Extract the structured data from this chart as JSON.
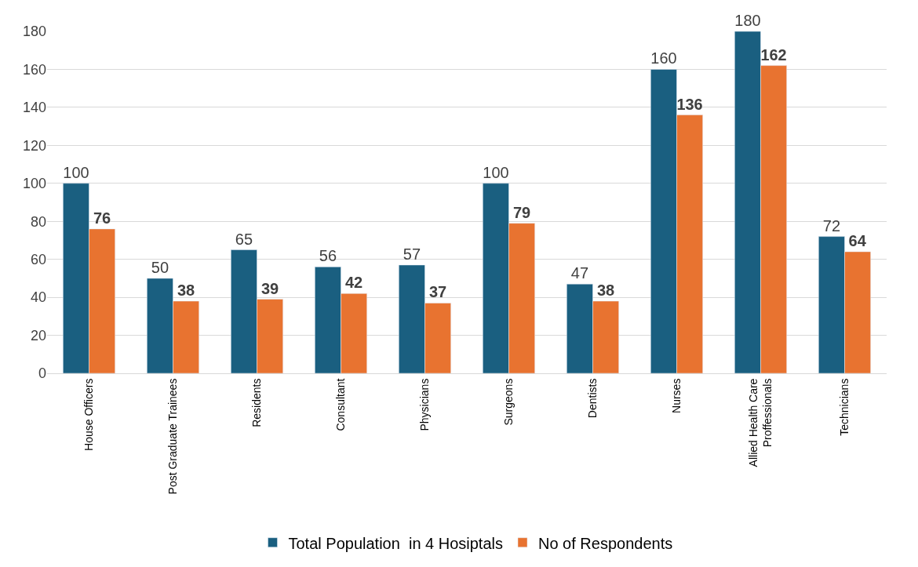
{
  "chart_data": {
    "type": "bar",
    "categories": [
      "House Officers",
      "Post Graduate Trainees",
      "Residents",
      "Consultant",
      "Physicians",
      "Surgeons",
      "Dentists",
      "Nurses",
      "Allied Health Care Proffessionals",
      "Technicians"
    ],
    "series": [
      {
        "name": "Total Population  in 4 Hosiptals",
        "color": "#1a5f80",
        "values": [
          100,
          50,
          65,
          56,
          57,
          100,
          47,
          160,
          180,
          72
        ]
      },
      {
        "name": "No of Respondents",
        "color": "#e87330",
        "values": [
          76,
          38,
          39,
          42,
          37,
          79,
          38,
          136,
          162,
          64
        ]
      }
    ],
    "ylim": [
      0,
      180
    ],
    "yticks": [
      0,
      20,
      40,
      60,
      80,
      100,
      120,
      140,
      160,
      180
    ],
    "grid": "y",
    "legend": "bottom",
    "data_labels": true
  }
}
